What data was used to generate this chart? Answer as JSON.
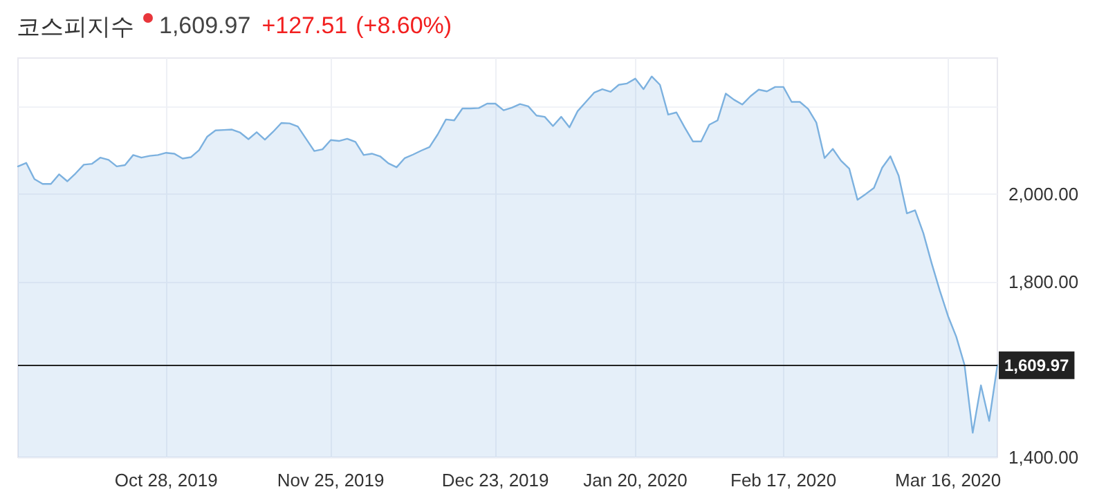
{
  "chart_data": {
    "type": "area",
    "title": "코스피지수",
    "annotations": [
      "1,609.97",
      "+127.51",
      "(+8.60%)"
    ],
    "categories": [
      null,
      null,
      null,
      null,
      null,
      null,
      null,
      null,
      null,
      null,
      null,
      null,
      null,
      null,
      null,
      null,
      null,
      null,
      "Oct 28, 2019",
      null,
      null,
      null,
      null,
      null,
      null,
      null,
      null,
      null,
      null,
      null,
      null,
      null,
      null,
      null,
      null,
      null,
      null,
      null,
      "Nov 25, 2019",
      null,
      null,
      null,
      null,
      null,
      null,
      null,
      null,
      null,
      null,
      null,
      null,
      null,
      null,
      null,
      null,
      null,
      null,
      null,
      "Dec 23, 2019",
      null,
      null,
      null,
      null,
      null,
      null,
      null,
      null,
      null,
      null,
      null,
      null,
      null,
      null,
      null,
      null,
      "Jan 20, 2020",
      null,
      null,
      null,
      null,
      null,
      null,
      null,
      null,
      null,
      null,
      null,
      null,
      null,
      null,
      null,
      null,
      null,
      "Feb 17, 2020",
      null,
      null,
      null,
      null,
      null,
      null,
      null,
      null,
      null,
      null,
      null,
      null,
      null,
      null,
      null,
      null,
      null,
      null,
      null,
      "Mar 16, 2020",
      null,
      null,
      null,
      null,
      null,
      null
    ],
    "series": [
      {
        "color": "#7cb1df",
        "values": [
          2063,
          2071,
          2034,
          2023,
          2023,
          2045,
          2029,
          2047,
          2067,
          2069,
          2083,
          2078,
          2063,
          2066,
          2089,
          2083,
          2087,
          2089,
          2094,
          2092,
          2081,
          2084,
          2100,
          2131,
          2145,
          2146,
          2147,
          2140,
          2125,
          2141,
          2124,
          2142,
          2162,
          2161,
          2154,
          2126,
          2098,
          2102,
          2123,
          2121,
          2126,
          2119,
          2089,
          2092,
          2086,
          2070,
          2061,
          2082,
          2090,
          2099,
          2107,
          2136,
          2170,
          2168,
          2195,
          2195,
          2196,
          2206,
          2206,
          2191,
          2197,
          2205,
          2200,
          2179,
          2176,
          2155,
          2176,
          2152,
          2189,
          2210,
          2231,
          2239,
          2233,
          2249,
          2252,
          2263,
          2239,
          2268,
          2249,
          2181,
          2186,
          2152,
          2120,
          2120,
          2158,
          2168,
          2229,
          2215,
          2204,
          2223,
          2238,
          2234,
          2244,
          2244,
          2210,
          2210,
          2194,
          2163,
          2082,
          2103,
          2076,
          2058,
          1987,
          2000,
          2014,
          2060,
          2086,
          2042,
          1956,
          1963,
          1911,
          1843,
          1780,
          1722,
          1675,
          1611,
          1456,
          1564,
          1483,
          1609.97
        ]
      }
    ],
    "ylim": [
      1400,
      2310
    ],
    "yticks": [
      {
        "value": 1400,
        "label": "1,400.00"
      },
      {
        "value": 1800,
        "label": "1,800.00"
      },
      {
        "value": 2000,
        "label": "2,000.00"
      },
      {
        "value": 2200,
        "label": null
      }
    ],
    "ref_lines": [
      {
        "axis": "y",
        "value": 1609.97,
        "label": "1,609.97",
        "color": "#222222"
      }
    ],
    "grid": true,
    "marker": "none",
    "line_style": "solid"
  }
}
